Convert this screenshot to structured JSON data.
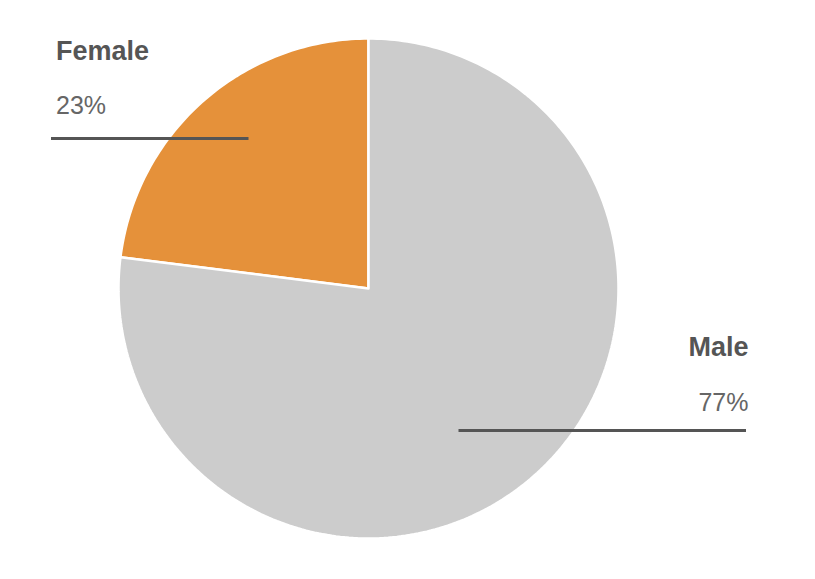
{
  "chart_data": {
    "type": "pie",
    "categories": [
      "Female",
      "Male"
    ],
    "values": [
      23,
      77
    ],
    "value_labels": [
      "23%",
      "77%"
    ],
    "colors": [
      "#e5913a",
      "#cccccc"
    ],
    "data_labels": true
  }
}
